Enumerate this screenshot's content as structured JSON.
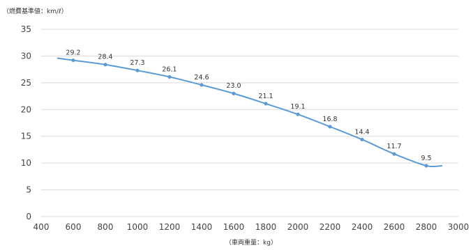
{
  "chart_data": {
    "type": "line",
    "title": "",
    "ylabel": "（燃費基準値：km/ℓ）",
    "xlabel": "（車両重量：kg）",
    "xlim": [
      400,
      3000
    ],
    "ylim": [
      0,
      35
    ],
    "x_ticks": [
      400,
      600,
      800,
      1000,
      1200,
      1400,
      1600,
      1800,
      2000,
      2200,
      2400,
      2600,
      2800,
      3000
    ],
    "y_ticks": [
      0,
      5,
      10,
      15,
      20,
      25,
      30,
      35
    ],
    "grid": "horizontal",
    "legend": "none",
    "color": "#5b9bd5",
    "series": [
      {
        "points": [
          {
            "x": 600,
            "y": 29.2,
            "label": "29.2"
          },
          {
            "x": 800,
            "y": 28.4,
            "label": "28.4"
          },
          {
            "x": 1000,
            "y": 27.3,
            "label": "27.3"
          },
          {
            "x": 1200,
            "y": 26.1,
            "label": "26.1"
          },
          {
            "x": 1400,
            "y": 24.6,
            "label": "24.6"
          },
          {
            "x": 1600,
            "y": 23.0,
            "label": "23.0"
          },
          {
            "x": 1800,
            "y": 21.1,
            "label": "21.1"
          },
          {
            "x": 2000,
            "y": 19.1,
            "label": "19.1"
          },
          {
            "x": 2200,
            "y": 16.8,
            "label": "16.8"
          },
          {
            "x": 2400,
            "y": 14.4,
            "label": "14.4"
          },
          {
            "x": 2600,
            "y": 11.7,
            "label": "11.7"
          },
          {
            "x": 2800,
            "y": 9.5,
            "label": "9.5"
          }
        ],
        "line_extent": [
          {
            "x": 500,
            "y": 29.6
          },
          {
            "x": 2900,
            "y": 9.5
          }
        ]
      }
    ]
  }
}
